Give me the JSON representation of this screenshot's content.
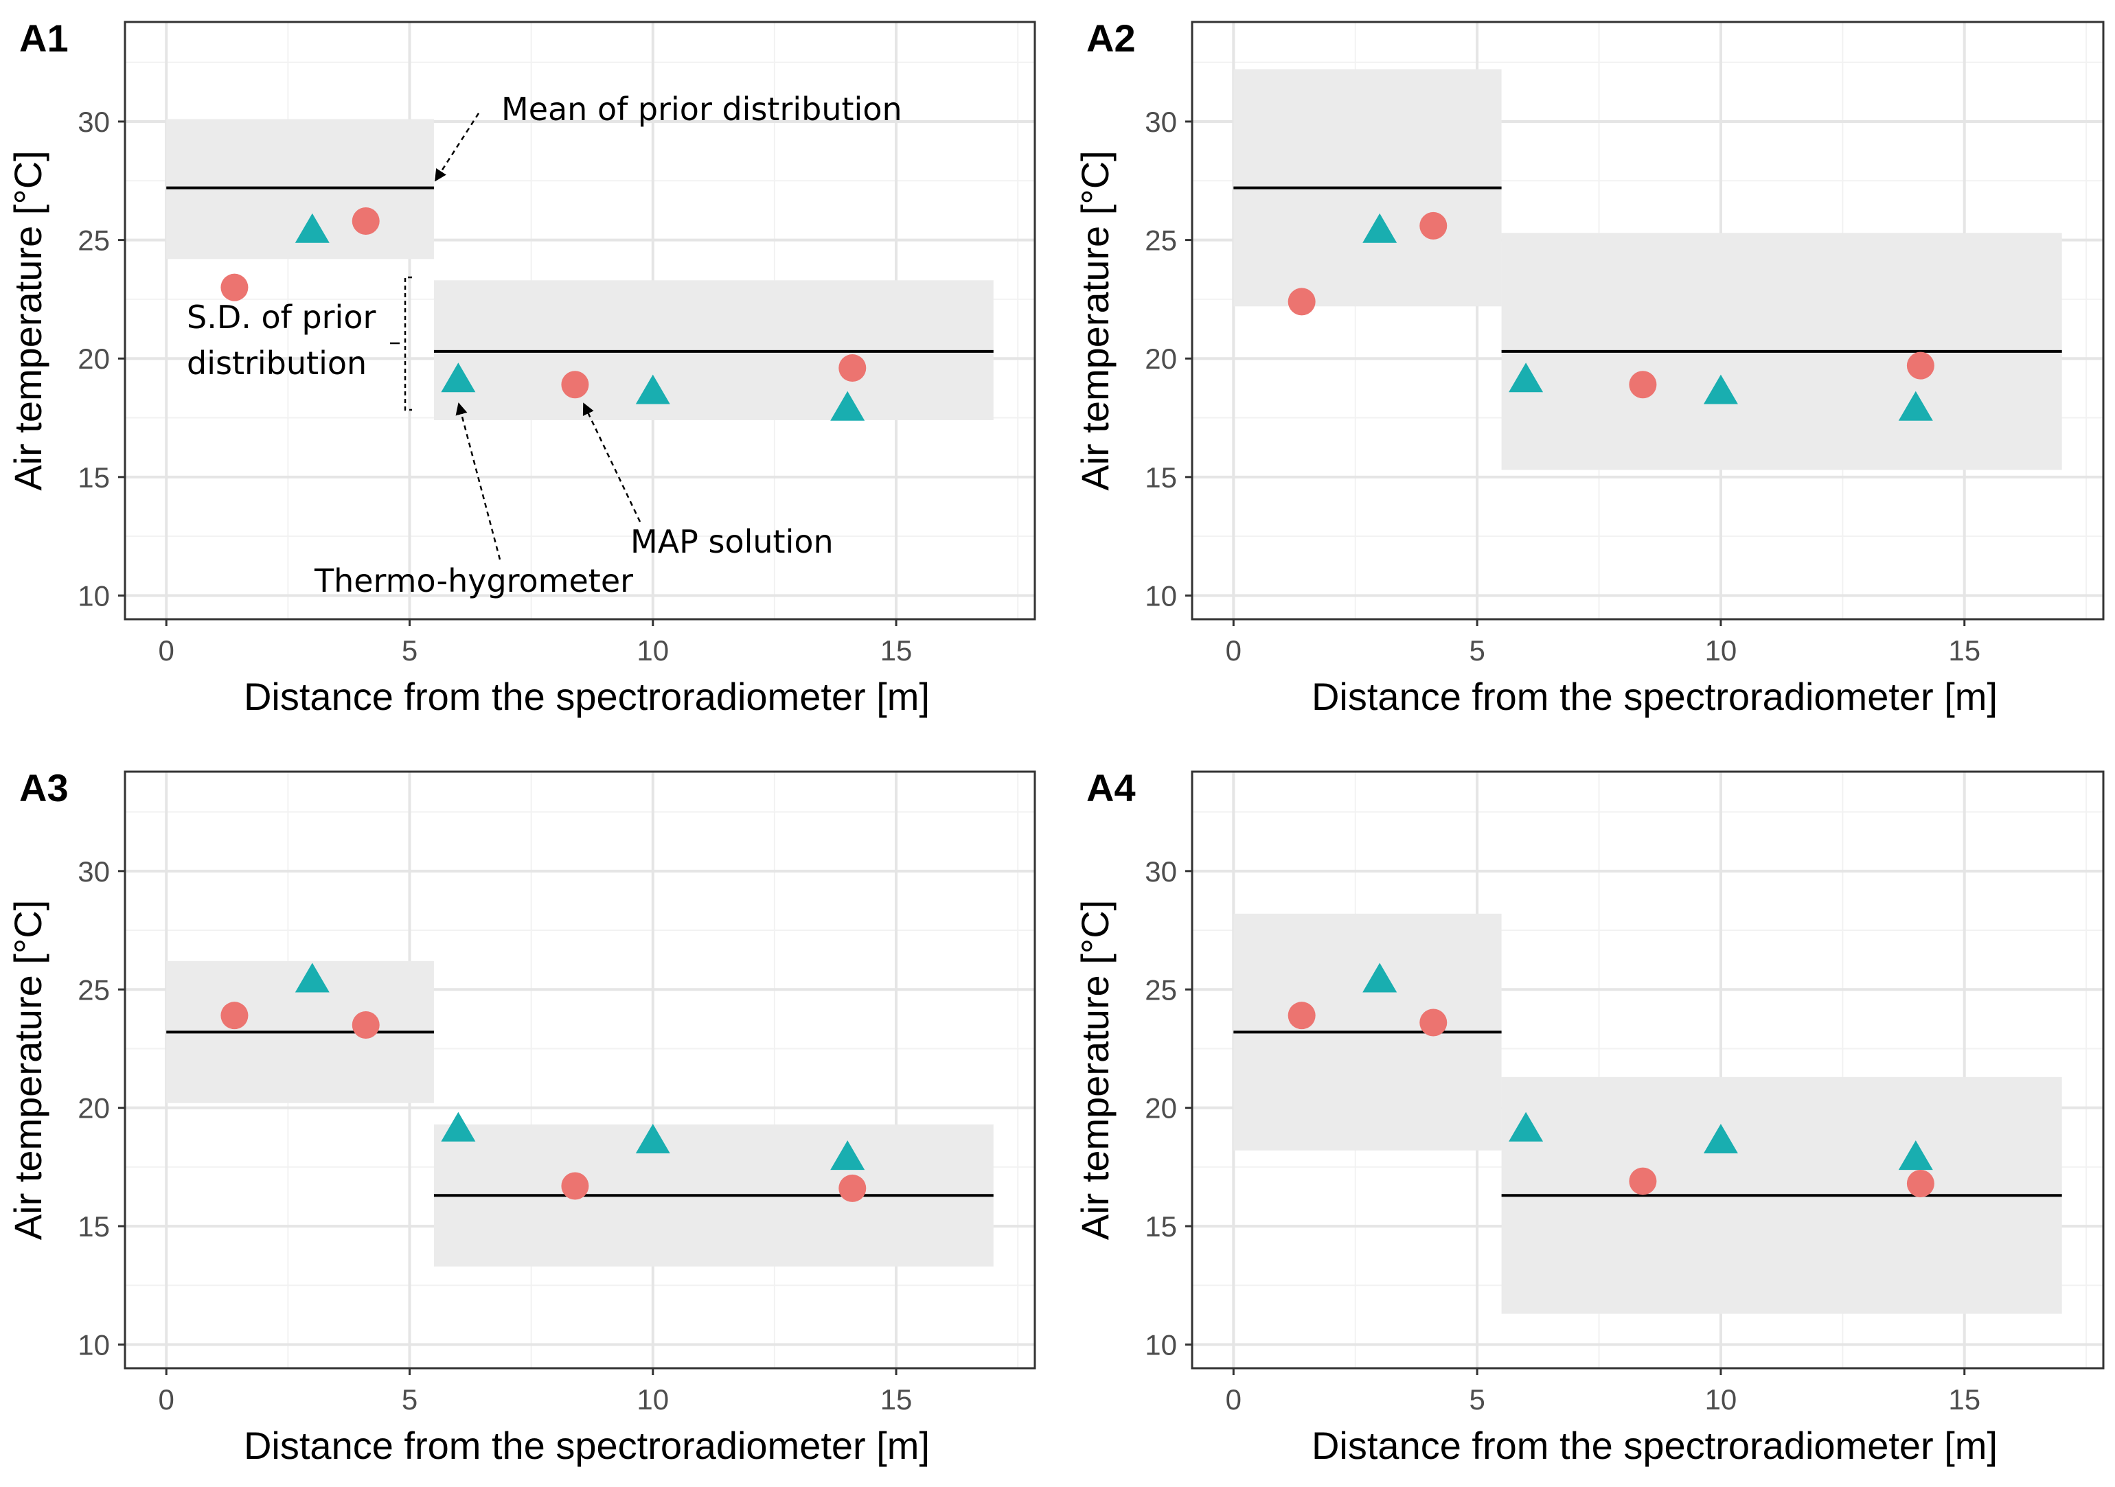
{
  "figure": {
    "colors": {
      "thermo": "#19aeb0",
      "map": "#ec7470",
      "band": "#ebebeb",
      "prior_line": "#000000",
      "grid_major": "#e5e5e5",
      "grid_minor": "#f2f2f2",
      "frame": "#333333"
    }
  },
  "chart_data": [
    {
      "panel": "A1",
      "type": "scatter",
      "xlabel": "Distance from the spectroradiometer [m]",
      "ylabel": "Air temperature [°C]",
      "xlim": [
        -0.85,
        17.85
      ],
      "ylim": [
        9.0,
        34.2
      ],
      "xticks": [
        0,
        5,
        10,
        15
      ],
      "yticks": [
        10,
        15,
        20,
        25,
        30
      ],
      "grid": true,
      "prior_segments": [
        {
          "x": [
            0,
            5.5
          ],
          "mean": 27.2,
          "sd_low": 24.2,
          "sd_high": 30.1
        },
        {
          "x": [
            5.5,
            17
          ],
          "mean": 20.3,
          "sd_low": 17.4,
          "sd_high": 23.3
        }
      ],
      "series": [
        {
          "name": "Thermo-hygrometer",
          "marker": "triangle",
          "x": [
            3.0,
            6.0,
            10.0,
            14.0
          ],
          "y": [
            25.4,
            19.1,
            18.6,
            17.9
          ]
        },
        {
          "name": "MAP solution",
          "marker": "circle",
          "x": [
            1.4,
            4.1,
            8.4,
            14.1
          ],
          "y": [
            23.0,
            25.8,
            18.9,
            19.6
          ]
        }
      ],
      "annotations": {
        "mean_label": "Mean of prior distribution",
        "sd_label_line1": "S.D. of prior",
        "sd_label_line2": "distribution",
        "map_label": "MAP solution",
        "thermo_label": "Thermo-hygrometer"
      }
    },
    {
      "panel": "A2",
      "type": "scatter",
      "xlabel": "Distance from the spectroradiometer [m]",
      "ylabel": "Air temperature [°C]",
      "xlim": [
        -0.85,
        17.85
      ],
      "ylim": [
        9.0,
        34.2
      ],
      "xticks": [
        0,
        5,
        10,
        15
      ],
      "yticks": [
        10,
        15,
        20,
        25,
        30
      ],
      "grid": true,
      "prior_segments": [
        {
          "x": [
            0,
            5.5
          ],
          "mean": 27.2,
          "sd_low": 22.2,
          "sd_high": 32.2
        },
        {
          "x": [
            5.5,
            17
          ],
          "mean": 20.3,
          "sd_low": 15.3,
          "sd_high": 25.3
        }
      ],
      "series": [
        {
          "name": "Thermo-hygrometer",
          "marker": "triangle",
          "x": [
            3.0,
            6.0,
            10.0,
            14.0
          ],
          "y": [
            25.4,
            19.1,
            18.6,
            17.9
          ]
        },
        {
          "name": "MAP solution",
          "marker": "circle",
          "x": [
            1.4,
            4.1,
            8.4,
            14.1
          ],
          "y": [
            22.4,
            25.6,
            18.9,
            19.7
          ]
        }
      ]
    },
    {
      "panel": "A3",
      "type": "scatter",
      "xlabel": "Distance from the spectroradiometer [m]",
      "ylabel": "Air temperature [°C]",
      "xlim": [
        -0.85,
        17.85
      ],
      "ylim": [
        9.0,
        34.2
      ],
      "xticks": [
        0,
        5,
        10,
        15
      ],
      "yticks": [
        10,
        15,
        20,
        25,
        30
      ],
      "grid": true,
      "prior_segments": [
        {
          "x": [
            0,
            5.5
          ],
          "mean": 23.2,
          "sd_low": 20.2,
          "sd_high": 26.2
        },
        {
          "x": [
            5.5,
            17
          ],
          "mean": 16.3,
          "sd_low": 13.3,
          "sd_high": 19.3
        }
      ],
      "series": [
        {
          "name": "Thermo-hygrometer",
          "marker": "triangle",
          "x": [
            3.0,
            6.0,
            10.0,
            14.0
          ],
          "y": [
            25.4,
            19.1,
            18.6,
            17.9
          ]
        },
        {
          "name": "MAP solution",
          "marker": "circle",
          "x": [
            1.4,
            4.1,
            8.4,
            14.1
          ],
          "y": [
            23.9,
            23.5,
            16.7,
            16.6
          ]
        }
      ]
    },
    {
      "panel": "A4",
      "type": "scatter",
      "xlabel": "Distance from the spectroradiometer [m]",
      "ylabel": "Air temperature [°C]",
      "xlim": [
        -0.85,
        17.85
      ],
      "ylim": [
        9.0,
        34.2
      ],
      "xticks": [
        0,
        5,
        10,
        15
      ],
      "yticks": [
        10,
        15,
        20,
        25,
        30
      ],
      "grid": true,
      "prior_segments": [
        {
          "x": [
            0,
            5.5
          ],
          "mean": 23.2,
          "sd_low": 18.2,
          "sd_high": 28.2
        },
        {
          "x": [
            5.5,
            17
          ],
          "mean": 16.3,
          "sd_low": 11.3,
          "sd_high": 21.3
        }
      ],
      "series": [
        {
          "name": "Thermo-hygrometer",
          "marker": "triangle",
          "x": [
            3.0,
            6.0,
            10.0,
            14.0
          ],
          "y": [
            25.4,
            19.1,
            18.6,
            17.9
          ]
        },
        {
          "name": "MAP solution",
          "marker": "circle",
          "x": [
            1.4,
            4.1,
            8.4,
            14.1
          ],
          "y": [
            23.9,
            23.6,
            16.9,
            16.8
          ]
        }
      ]
    }
  ]
}
